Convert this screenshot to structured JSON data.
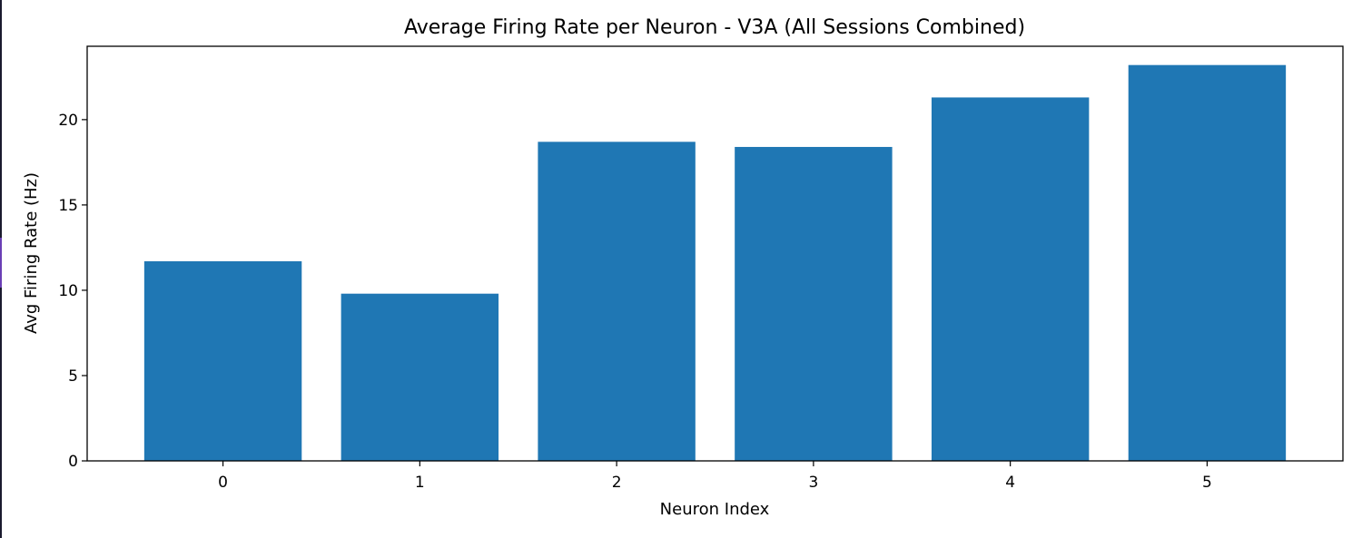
{
  "chart_data": {
    "type": "bar",
    "title": "Average Firing Rate per Neuron - V3A (All Sessions Combined)",
    "xlabel": "Neuron Index",
    "ylabel": "Avg Firing Rate (Hz)",
    "categories": [
      "0",
      "1",
      "2",
      "3",
      "4",
      "5"
    ],
    "values": [
      11.7,
      9.8,
      18.7,
      18.4,
      21.3,
      23.2
    ],
    "ylim": [
      0,
      24.3
    ],
    "yticks": [
      0,
      5,
      10,
      15,
      20
    ],
    "ytick_labels": [
      "0",
      "5",
      "10",
      "15",
      "20"
    ],
    "grid": false,
    "legend": "none",
    "bar_color": "#1f77b4"
  }
}
